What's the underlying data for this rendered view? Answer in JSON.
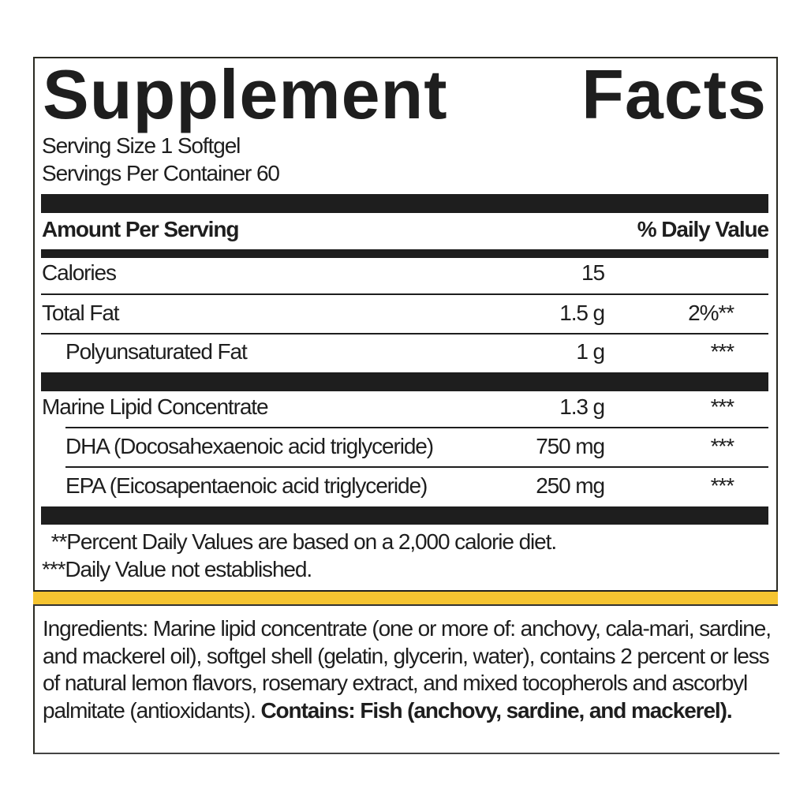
{
  "title": {
    "word1": "Supplement",
    "word2": "Facts"
  },
  "serving_size": "Serving Size 1 Softgel",
  "servings_per_container": "Servings Per Container 60",
  "header": {
    "amount_per_serving": "Amount Per Serving",
    "daily_value": "% Daily Value"
  },
  "rows": [
    {
      "name": "Calories",
      "amount": "15",
      "dv": ""
    },
    {
      "name": "Total Fat",
      "amount": "1.5 g",
      "dv": "2%**"
    },
    {
      "name": "Polyunsaturated Fat",
      "amount": "1 g",
      "dv": "***"
    },
    {
      "name": "Marine Lipid Concentrate",
      "amount": "1.3 g",
      "dv": "***"
    },
    {
      "name": "DHA (Docosahexaenoic acid triglyceride)",
      "amount": "750 mg",
      "dv": "***"
    },
    {
      "name": "EPA (Eicosapentaenoic acid triglyceride)",
      "amount": "250 mg",
      "dv": "***"
    }
  ],
  "footnotes": [
    " **Percent Daily Values are based on a 2,000 calorie diet.",
    "***Daily Value not established."
  ],
  "ingredients": {
    "text": "Ingredients: Marine lipid concentrate (one or more of: anchovy, cala-mari, sardine, and mackerel oil), softgel shell (gelatin, glycerin, water), contains 2 percent or less of natural lemon flavors, rosemary extract, and mixed tocopherols and ascorbyl palmitate (antioxidants). ",
    "allergen": "Contains: Fish (anchovy, sardine, and mackerel)."
  },
  "colors": {
    "accent_band": "#f5c431",
    "ink": "#1e1e1e"
  }
}
